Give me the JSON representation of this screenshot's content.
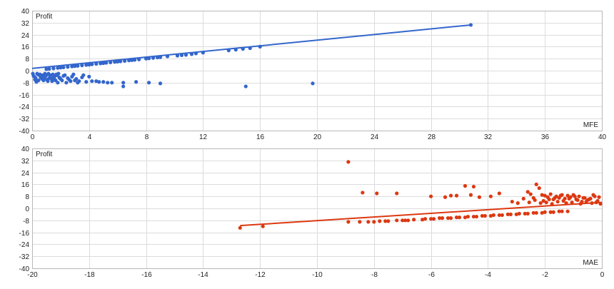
{
  "colors": {
    "mfe": "#3366cc",
    "mae": "#dc3912",
    "grid": "#dcdcdc",
    "frame": "#b8b8b8"
  },
  "chart_data": [
    {
      "type": "scatter",
      "ylabel": "Profit",
      "xlabel": "MFE",
      "xlim": [
        0,
        40
      ],
      "ylim": [
        -40,
        40
      ],
      "x_ticks": [
        0,
        4,
        8,
        12,
        16,
        20,
        24,
        28,
        32,
        36,
        40
      ],
      "y_ticks": [
        40,
        32,
        24,
        16,
        8,
        0,
        -8,
        -16,
        -24,
        -32,
        -40
      ],
      "x_tick_labels": [
        "0",
        "4",
        "8",
        "12",
        "16",
        "20",
        "24",
        "28",
        "32",
        "36",
        "40"
      ],
      "y_tick_labels": [
        "40",
        "32",
        "24",
        "16",
        "8",
        "0",
        "-8",
        "-16",
        "-24",
        "-32",
        "-40"
      ],
      "trendline": {
        "x": [
          0,
          30.8
        ],
        "y": [
          1.5,
          30.5
        ]
      },
      "points": [
        [
          30.8,
          30.5
        ],
        [
          16.0,
          16.0
        ],
        [
          15.3,
          15.0
        ],
        [
          14.8,
          14.5
        ],
        [
          14.3,
          14.0
        ],
        [
          13.8,
          13.5
        ],
        [
          12.0,
          12.0
        ],
        [
          11.5,
          11.5
        ],
        [
          11.2,
          11.0
        ],
        [
          10.8,
          10.5
        ],
        [
          10.5,
          10.3
        ],
        [
          10.2,
          10.0
        ],
        [
          9.5,
          9.5
        ],
        [
          9.0,
          9.0
        ],
        [
          8.8,
          8.8
        ],
        [
          8.5,
          8.5
        ],
        [
          8.2,
          8.2
        ],
        [
          8.0,
          8.0
        ],
        [
          7.5,
          7.5
        ],
        [
          7.2,
          7.2
        ],
        [
          7.0,
          7.0
        ],
        [
          6.8,
          6.8
        ],
        [
          6.5,
          6.5
        ],
        [
          6.2,
          6.2
        ],
        [
          6.0,
          6.0
        ],
        [
          5.8,
          5.8
        ],
        [
          5.5,
          5.5
        ],
        [
          5.2,
          5.2
        ],
        [
          5.0,
          5.0
        ],
        [
          4.8,
          4.8
        ],
        [
          4.5,
          4.5
        ],
        [
          4.2,
          4.2
        ],
        [
          4.0,
          4.0
        ],
        [
          3.8,
          3.8
        ],
        [
          3.5,
          3.5
        ],
        [
          3.2,
          3.2
        ],
        [
          3.0,
          3.0
        ],
        [
          2.8,
          2.8
        ],
        [
          2.5,
          2.5
        ],
        [
          2.2,
          2.2
        ],
        [
          2.0,
          2.0
        ],
        [
          1.8,
          1.8
        ],
        [
          1.5,
          1.5
        ],
        [
          1.2,
          1.2
        ],
        [
          1.0,
          1.0
        ],
        [
          19.7,
          -8.5
        ],
        [
          15.0,
          -10.5
        ],
        [
          9.0,
          -8.5
        ],
        [
          8.2,
          -8.0
        ],
        [
          7.3,
          -7.5
        ],
        [
          6.4,
          -10.5
        ],
        [
          6.4,
          -8.0
        ],
        [
          5.6,
          -8.0
        ],
        [
          5.3,
          -8.0
        ],
        [
          5.0,
          -7.5
        ],
        [
          4.7,
          -7.5
        ],
        [
          4.5,
          -7.0
        ],
        [
          4.2,
          -7.0
        ],
        [
          3.8,
          -7.5
        ],
        [
          3.5,
          -4.5
        ],
        [
          3.2,
          -8.0
        ],
        [
          3.0,
          -6.5
        ],
        [
          2.8,
          -4.0
        ],
        [
          2.6,
          -6.0
        ],
        [
          2.4,
          -8.0
        ],
        [
          2.2,
          -3.5
        ],
        [
          2.0,
          -5.5
        ],
        [
          1.8,
          -8.0
        ],
        [
          1.6,
          -3.5
        ],
        [
          1.4,
          -7.0
        ],
        [
          1.2,
          -5.0
        ],
        [
          1.0,
          -3.0
        ],
        [
          0.8,
          -6.5
        ],
        [
          0.6,
          -4.5
        ],
        [
          0.4,
          -2.5
        ],
        [
          0.2,
          -6.0
        ],
        [
          0.1,
          -3.5
        ],
        [
          0.3,
          -7.5
        ],
        [
          0.5,
          -3.0
        ],
        [
          0.7,
          -5.5
        ],
        [
          0.9,
          -2.0
        ],
        [
          1.1,
          -7.0
        ],
        [
          1.3,
          -4.0
        ],
        [
          1.5,
          -6.0
        ],
        [
          1.7,
          -2.5
        ],
        [
          1.9,
          -4.5
        ],
        [
          2.1,
          -6.5
        ],
        [
          2.3,
          -3.0
        ],
        [
          2.5,
          -5.0
        ],
        [
          2.7,
          -7.0
        ],
        [
          2.9,
          -2.5
        ],
        [
          3.1,
          -5.5
        ],
        [
          3.3,
          -7.0
        ],
        [
          3.6,
          -3.0
        ],
        [
          4.0,
          -4.0
        ],
        [
          0.05,
          -2.0
        ],
        [
          0.15,
          -4.0
        ],
        [
          0.25,
          -5.0
        ],
        [
          0.35,
          -2.0
        ],
        [
          0.45,
          -6.5
        ],
        [
          0.55,
          -2.5
        ],
        [
          0.65,
          -4.0
        ],
        [
          0.75,
          -3.0
        ],
        [
          0.85,
          -5.0
        ],
        [
          0.95,
          -3.5
        ],
        [
          1.05,
          -6.0
        ],
        [
          1.15,
          -2.0
        ],
        [
          1.25,
          -3.0
        ],
        [
          1.35,
          -5.5
        ],
        [
          1.45,
          -2.5
        ],
        [
          1.55,
          -4.5
        ],
        [
          1.65,
          -6.5
        ],
        [
          1.75,
          -3.0
        ],
        [
          1.85,
          -2.0
        ],
        [
          1.95,
          -5.0
        ]
      ]
    },
    {
      "type": "scatter",
      "ylabel": "Profit",
      "xlabel": "MAE",
      "xlim": [
        -20,
        0
      ],
      "ylim": [
        -40,
        40
      ],
      "x_ticks": [
        -20,
        -18,
        -16,
        -14,
        -12,
        -10,
        -8,
        -6,
        -4,
        -2,
        0
      ],
      "y_ticks": [
        40,
        32,
        24,
        16,
        8,
        0,
        -8,
        -16,
        -24,
        -32,
        -40
      ],
      "x_tick_labels": [
        "-20",
        "-18",
        "-16",
        "-14",
        "-12",
        "-10",
        "-8",
        "-6",
        "-4",
        "-2",
        "0"
      ],
      "y_tick_labels": [
        "40",
        "32",
        "24",
        "16",
        "8",
        "0",
        "-8",
        "-16",
        "-24",
        "-32",
        "-40"
      ],
      "trendline": {
        "x": [
          -12.7,
          0
        ],
        "y": [
          -11.5,
          4.0
        ]
      },
      "points": [
        [
          -8.9,
          31.0
        ],
        [
          -8.4,
          10.5
        ],
        [
          -7.9,
          10.0
        ],
        [
          -7.2,
          10.0
        ],
        [
          -6.0,
          8.0
        ],
        [
          -5.5,
          7.5
        ],
        [
          -5.3,
          8.5
        ],
        [
          -5.1,
          8.5
        ],
        [
          -4.8,
          15.0
        ],
        [
          -4.6,
          9.0
        ],
        [
          -4.5,
          14.5
        ],
        [
          -4.3,
          7.5
        ],
        [
          -3.9,
          8.0
        ],
        [
          -3.6,
          10.0
        ],
        [
          -2.6,
          11.0
        ],
        [
          -2.5,
          9.5
        ],
        [
          -2.4,
          7.0
        ],
        [
          -2.3,
          16.0
        ],
        [
          -2.2,
          13.5
        ],
        [
          -2.1,
          9.0
        ],
        [
          -2.0,
          8.5
        ],
        [
          -1.9,
          7.5
        ],
        [
          -1.8,
          9.5
        ],
        [
          -1.7,
          6.0
        ],
        [
          -1.6,
          8.0
        ],
        [
          -1.5,
          7.0
        ],
        [
          -1.4,
          9.0
        ],
        [
          -1.3,
          6.5
        ],
        [
          -1.2,
          8.5
        ],
        [
          -1.1,
          7.5
        ],
        [
          -1.0,
          9.0
        ],
        [
          -0.9,
          6.0
        ],
        [
          -0.8,
          8.0
        ],
        [
          -0.7,
          4.5
        ],
        [
          -0.6,
          7.0
        ],
        [
          -0.5,
          5.5
        ],
        [
          -0.4,
          6.5
        ],
        [
          -0.3,
          9.0
        ],
        [
          -0.2,
          4.0
        ],
        [
          -0.1,
          7.5
        ],
        [
          -0.05,
          3.0
        ],
        [
          -0.15,
          5.0
        ],
        [
          -0.25,
          8.0
        ],
        [
          -0.35,
          3.5
        ],
        [
          -0.45,
          6.0
        ],
        [
          -0.55,
          4.5
        ],
        [
          -0.65,
          7.0
        ],
        [
          -0.75,
          3.0
        ],
        [
          -0.85,
          5.5
        ],
        [
          -0.95,
          8.0
        ],
        [
          -1.05,
          4.0
        ],
        [
          -1.15,
          6.5
        ],
        [
          -1.25,
          3.5
        ],
        [
          -1.35,
          5.0
        ],
        [
          -1.45,
          8.5
        ],
        [
          -1.55,
          4.5
        ],
        [
          -1.65,
          7.0
        ],
        [
          -1.75,
          3.0
        ],
        [
          -1.85,
          6.0
        ],
        [
          -1.95,
          4.0
        ],
        [
          -2.05,
          5.0
        ],
        [
          -2.15,
          3.5
        ],
        [
          -2.35,
          5.5
        ],
        [
          -2.55,
          4.0
        ],
        [
          -2.75,
          6.5
        ],
        [
          -2.95,
          3.5
        ],
        [
          -3.15,
          4.5
        ],
        [
          -12.7,
          -13.0
        ],
        [
          -11.9,
          -12.0
        ],
        [
          -8.9,
          -9.0
        ],
        [
          -8.5,
          -9.0
        ],
        [
          -8.2,
          -9.0
        ],
        [
          -7.8,
          -8.5
        ],
        [
          -7.5,
          -8.5
        ],
        [
          -7.2,
          -8.0
        ],
        [
          -6.9,
          -8.0
        ],
        [
          -6.6,
          -7.5
        ],
        [
          -6.3,
          -7.5
        ],
        [
          -6.0,
          -7.0
        ],
        [
          -5.7,
          -6.5
        ],
        [
          -5.4,
          -6.5
        ],
        [
          -5.1,
          -6.0
        ],
        [
          -4.8,
          -6.0
        ],
        [
          -4.5,
          -5.5
        ],
        [
          -4.2,
          -5.0
        ],
        [
          -3.9,
          -5.0
        ],
        [
          -3.6,
          -4.5
        ],
        [
          -3.3,
          -4.0
        ],
        [
          -3.0,
          -4.0
        ],
        [
          -2.7,
          -3.5
        ],
        [
          -2.4,
          -3.0
        ],
        [
          -2.1,
          -3.0
        ],
        [
          -1.8,
          -2.5
        ],
        [
          -1.5,
          -2.0
        ],
        [
          -1.2,
          -2.0
        ],
        [
          -8.0,
          -9.0
        ],
        [
          -7.6,
          -8.5
        ],
        [
          -7.0,
          -8.0
        ],
        [
          -6.8,
          -8.0
        ],
        [
          -6.2,
          -7.0
        ],
        [
          -5.9,
          -7.0
        ],
        [
          -5.6,
          -6.5
        ],
        [
          -5.3,
          -6.5
        ],
        [
          -5.0,
          -6.0
        ],
        [
          -4.7,
          -5.5
        ],
        [
          -4.4,
          -5.5
        ],
        [
          -4.1,
          -5.0
        ],
        [
          -3.8,
          -4.5
        ],
        [
          -3.5,
          -4.5
        ],
        [
          -3.2,
          -4.0
        ],
        [
          -2.9,
          -3.5
        ],
        [
          -2.6,
          -3.5
        ],
        [
          -2.3,
          -3.0
        ],
        [
          -2.0,
          -2.5
        ],
        [
          -1.7,
          -2.5
        ],
        [
          -1.4,
          -2.0
        ]
      ]
    }
  ]
}
